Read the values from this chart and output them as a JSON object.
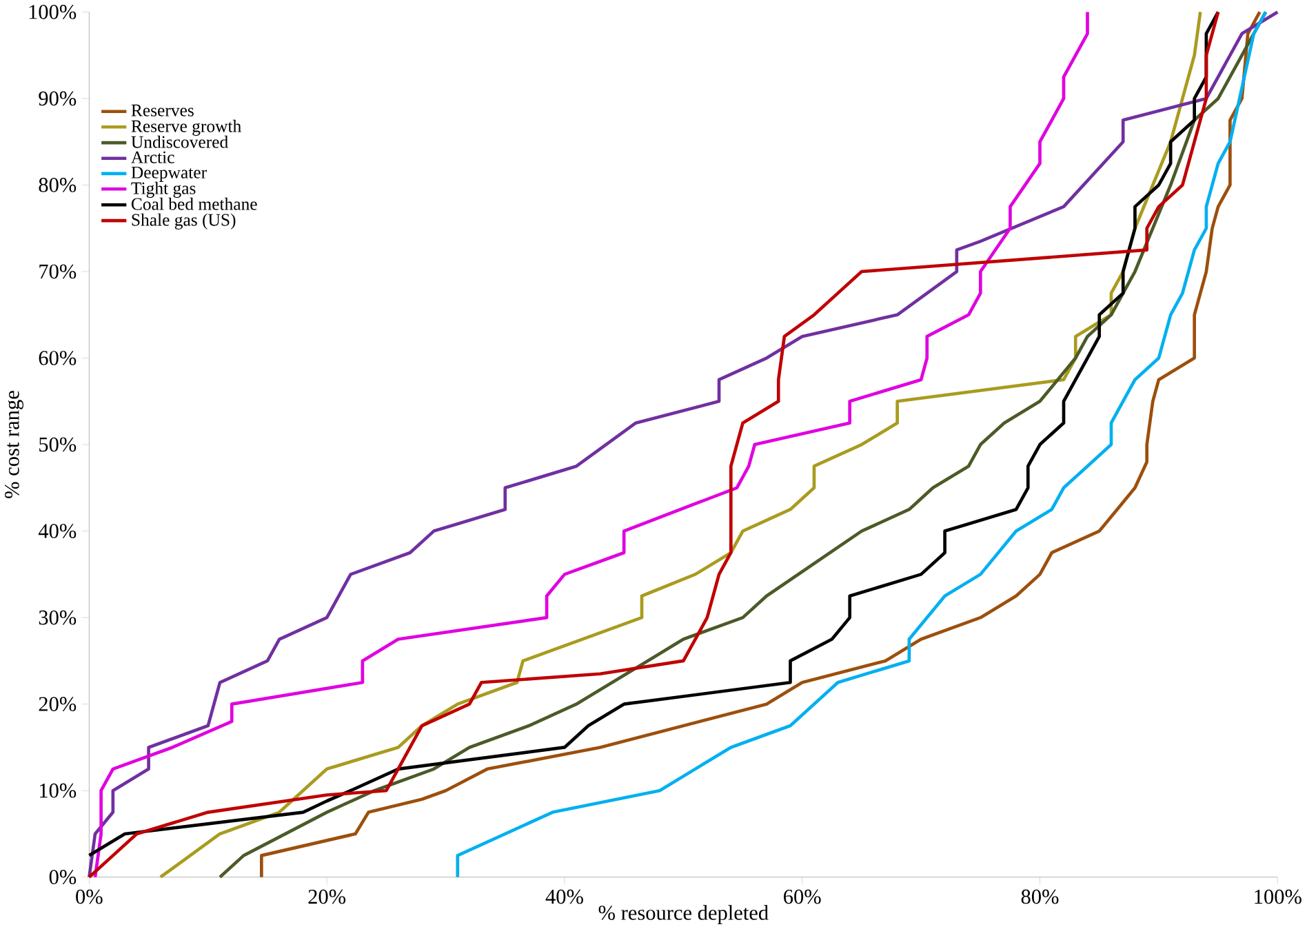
{
  "chart_data": {
    "type": "line",
    "xlabel": "% resource depleted",
    "ylabel": "% cost range",
    "xlim": [
      0,
      100
    ],
    "ylim": [
      0,
      100
    ],
    "xticks": [
      {
        "value": 0,
        "label": "0%"
      },
      {
        "value": 20,
        "label": "20%"
      },
      {
        "value": 40,
        "label": "40%"
      },
      {
        "value": 60,
        "label": "60%"
      },
      {
        "value": 80,
        "label": "80%"
      },
      {
        "value": 100,
        "label": "100%"
      }
    ],
    "yticks": [
      {
        "value": 0,
        "label": "0%"
      },
      {
        "value": 10,
        "label": "10%"
      },
      {
        "value": 20,
        "label": "20%"
      },
      {
        "value": 30,
        "label": "30%"
      },
      {
        "value": 40,
        "label": "40%"
      },
      {
        "value": 50,
        "label": "50%"
      },
      {
        "value": 60,
        "label": "60%"
      },
      {
        "value": 70,
        "label": "70%"
      },
      {
        "value": 80,
        "label": "80%"
      },
      {
        "value": 90,
        "label": "90%"
      },
      {
        "value": 100,
        "label": "100%"
      }
    ],
    "legend": "top left",
    "grid": false,
    "marker": "none",
    "line_style": "solid",
    "series": [
      {
        "name": "Reserves",
        "color": "#9c4f0c",
        "x": [
          14.5,
          14.5,
          22.4,
          23.5,
          28,
          30,
          33.5,
          43,
          57,
          60,
          67,
          70,
          75,
          78,
          80,
          81,
          85,
          86.5,
          88,
          89,
          89,
          89.5,
          90,
          93,
          93,
          94,
          94.5,
          95,
          96,
          96,
          97,
          97.5,
          98.5
        ],
        "values": [
          0,
          2.5,
          5,
          7.5,
          9,
          10,
          12.5,
          15,
          20,
          22.5,
          25,
          27.5,
          30,
          32.5,
          35,
          37.5,
          40,
          42.5,
          45,
          48,
          50,
          55,
          57.5,
          60,
          65,
          70,
          75,
          77.5,
          80,
          87.5,
          90,
          97.5,
          100
        ]
      },
      {
        "name": "Reserve growth",
        "color": "#a99b1f",
        "x": [
          6,
          8.5,
          11,
          16,
          20,
          26,
          28,
          31,
          36,
          36.5,
          46.5,
          46.5,
          51,
          54,
          55,
          59,
          61,
          61,
          65,
          68,
          68,
          82,
          83,
          83,
          86,
          86,
          87,
          88,
          91,
          92,
          93,
          93.5
        ],
        "values": [
          0,
          2.5,
          5,
          7.5,
          12.5,
          15,
          17.5,
          20,
          22.5,
          25,
          30,
          32.5,
          35,
          37.5,
          40,
          42.5,
          45,
          47.5,
          50,
          52.5,
          55,
          57.5,
          60,
          62.5,
          65,
          67.5,
          70,
          75,
          85,
          90,
          95,
          100
        ]
      },
      {
        "name": "Undiscovered",
        "color": "#4b5a28",
        "x": [
          11,
          13,
          20,
          24,
          29,
          32,
          37,
          41,
          47,
          50,
          55,
          57,
          65,
          69,
          71,
          74,
          75,
          77,
          80,
          83,
          84,
          86,
          87,
          88,
          91,
          93,
          95,
          97,
          99
        ],
        "values": [
          0,
          2.5,
          7.5,
          10,
          12.5,
          15,
          17.5,
          20,
          25,
          27.5,
          30,
          32.5,
          40,
          42.5,
          45,
          47.5,
          50,
          52.5,
          55,
          60,
          62.5,
          65,
          67.5,
          70,
          80,
          87.5,
          90,
          95,
          100
        ]
      },
      {
        "name": "Arctic",
        "color": "#7030a0",
        "x": [
          0,
          0.5,
          2,
          2,
          5,
          5,
          10,
          11,
          15,
          16,
          20,
          22,
          27,
          29,
          35,
          35,
          41,
          46,
          53,
          53,
          57,
          60,
          68,
          73,
          73,
          75,
          82,
          87,
          87,
          94,
          97,
          100
        ],
        "values": [
          0,
          5,
          7.5,
          10,
          12.5,
          15,
          17.5,
          22.5,
          25,
          27.5,
          30,
          35,
          37.5,
          40,
          42.5,
          45,
          47.5,
          52.5,
          55,
          57.5,
          60,
          62.5,
          65,
          70,
          72.5,
          73.5,
          77.5,
          85,
          87.5,
          90,
          97.5,
          100
        ]
      },
      {
        "name": "Deepwater",
        "color": "#00b0f0",
        "x": [
          31,
          31,
          35,
          39,
          48,
          54,
          59,
          63,
          69,
          69,
          72,
          75,
          78,
          81,
          82,
          84,
          86,
          86,
          88,
          90,
          91,
          92,
          93,
          94,
          94,
          95,
          96,
          98,
          99
        ],
        "values": [
          0,
          2.5,
          5,
          7.5,
          10,
          15,
          17.5,
          22.5,
          25,
          27.5,
          32.5,
          35,
          40,
          42.5,
          45,
          47.5,
          50,
          52.5,
          57.5,
          60,
          65,
          67.5,
          72.5,
          75,
          77.5,
          82.5,
          85,
          97.5,
          100
        ]
      },
      {
        "name": "Tight gas",
        "color": "#e000e0",
        "x": [
          0.5,
          1,
          1,
          2,
          7,
          12,
          12,
          23,
          23,
          26,
          38.5,
          38.5,
          40,
          45,
          45,
          54.5,
          55.5,
          56,
          64,
          64,
          70,
          70.5,
          70.5,
          74,
          75,
          75,
          77.5,
          77.5,
          80,
          80,
          81,
          82,
          82,
          84,
          84
        ],
        "values": [
          0,
          5,
          10,
          12.5,
          15,
          18,
          20,
          22.5,
          25,
          27.5,
          30,
          32.5,
          35,
          37.5,
          40,
          45,
          47.5,
          50,
          52.5,
          55,
          57.5,
          60,
          62.5,
          65,
          67.5,
          70,
          75,
          77.5,
          82.5,
          85,
          87.5,
          90,
          92.5,
          97.5,
          100
        ]
      },
      {
        "name": "Coal bed methane",
        "color": "#000000",
        "x": [
          0,
          3,
          18,
          20,
          22,
          26,
          40,
          42,
          45,
          59,
          59,
          62.5,
          64,
          64,
          70,
          72,
          72,
          78,
          79,
          79,
          80,
          82,
          82,
          83,
          84,
          85,
          85,
          87,
          87,
          88,
          88,
          90,
          91,
          91,
          93,
          93,
          94,
          94,
          95
        ],
        "values": [
          2.5,
          5,
          7.5,
          8.8,
          10,
          12.5,
          15,
          17.5,
          20,
          22.5,
          25,
          27.5,
          30,
          32.5,
          35,
          37.5,
          40,
          42.5,
          45,
          47.5,
          50,
          52.5,
          55,
          57.5,
          60,
          62.5,
          65,
          67.5,
          70,
          75,
          77.5,
          80,
          82.5,
          85,
          87.5,
          90,
          92.5,
          97.5,
          100
        ]
      },
      {
        "name": "Shale gas (US)",
        "color": "#c00000",
        "x": [
          0,
          2,
          4,
          10,
          20,
          25,
          26,
          27,
          28,
          32,
          33,
          43,
          50,
          51,
          52,
          53,
          54,
          54,
          55,
          58,
          58,
          58.5,
          61,
          63,
          65,
          89,
          89,
          90,
          92,
          93,
          94,
          94,
          95
        ],
        "values": [
          0,
          2.5,
          5,
          7.5,
          9.5,
          10,
          12.5,
          15,
          17.5,
          20,
          22.5,
          23.5,
          25,
          27.5,
          30,
          35,
          37.5,
          47.5,
          52.5,
          55,
          57.5,
          62.5,
          65,
          67.5,
          70,
          72.5,
          75,
          77.5,
          80,
          85,
          90,
          95,
          100
        ]
      }
    ]
  }
}
